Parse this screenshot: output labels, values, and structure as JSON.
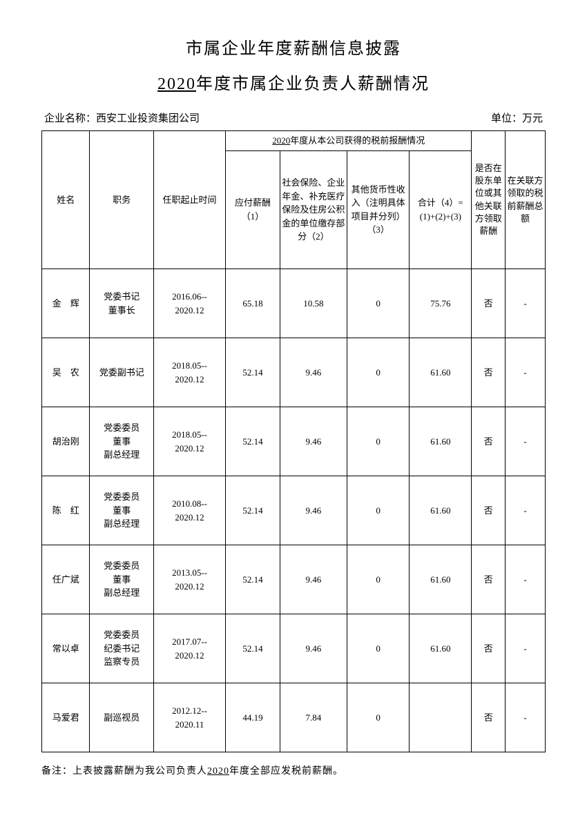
{
  "title_main": "市属企业年度薪酬信息披露",
  "title_sub_year": "2020",
  "title_sub_rest": "年度市属企业负责人薪酬情况",
  "company_label": "企业名称：",
  "company_name": "西安工业投资集团公司",
  "unit_label": "单位：万元",
  "headers": {
    "name": "姓名",
    "position": "职务",
    "term": "任职起止时间",
    "comp_group_year": "2020",
    "comp_group_rest": "年度从本公司获得的税前报酬情况",
    "pay1": "应付薪酬（1）",
    "pay2": "社会保险、企业年金、补充医疗保险及住房公积金的单位缴存部分（2）",
    "pay3": "其他货币性收入（注明具体项目并分列）（3）",
    "pay4": "合计（4）=(1)+(2)+(3)",
    "flag": "是否在股东单位或其他关联方领取薪酬",
    "rel": "在关联方领取的税前薪酬总额"
  },
  "rows": [
    {
      "name": "金　辉",
      "position": "党委书记\n董事长",
      "term": "2016.06--\n2020.12",
      "pay1": "65.18",
      "pay2": "10.58",
      "pay3": "0",
      "pay4": "75.76",
      "flag": "否",
      "rel": "-"
    },
    {
      "name": "吴　农",
      "position": "党委副书记",
      "term": "2018.05--\n2020.12",
      "pay1": "52.14",
      "pay2": "9.46",
      "pay3": "0",
      "pay4": "61.60",
      "flag": "否",
      "rel": "-"
    },
    {
      "name": "胡治刚",
      "position": "党委委员\n董事\n副总经理",
      "term": "2018.05--\n2020.12",
      "pay1": "52.14",
      "pay2": "9.46",
      "pay3": "0",
      "pay4": "61.60",
      "flag": "否",
      "rel": "-"
    },
    {
      "name": "陈　红",
      "position": "党委委员\n董事\n副总经理",
      "term": "2010.08--\n2020.12",
      "pay1": "52.14",
      "pay2": "9.46",
      "pay3": "0",
      "pay4": "61.60",
      "flag": "否",
      "rel": "-"
    },
    {
      "name": "任广斌",
      "position": "党委委员\n董事\n副总经理",
      "term": "2013.05--\n2020.12",
      "pay1": "52.14",
      "pay2": "9.46",
      "pay3": "0",
      "pay4": "61.60",
      "flag": "否",
      "rel": "-"
    },
    {
      "name": "常以卓",
      "position": "党委委员\n纪委书记\n监察专员",
      "term": "2017.07--\n2020.12",
      "pay1": "52.14",
      "pay2": "9.46",
      "pay3": "0",
      "pay4": "61.60",
      "flag": "否",
      "rel": "-"
    },
    {
      "name": "马爱君",
      "position": "副巡视员",
      "term": "2012.12--\n2020.11",
      "pay1": "44.19",
      "pay2": "7.84",
      "pay3": "0",
      "pay4": "",
      "flag": "否",
      "rel": "-"
    }
  ],
  "footnote_prefix": "备注：上表披露薪酬为我公司负责人",
  "footnote_year": "2020",
  "footnote_suffix": "年度全部应发税前薪酬。"
}
